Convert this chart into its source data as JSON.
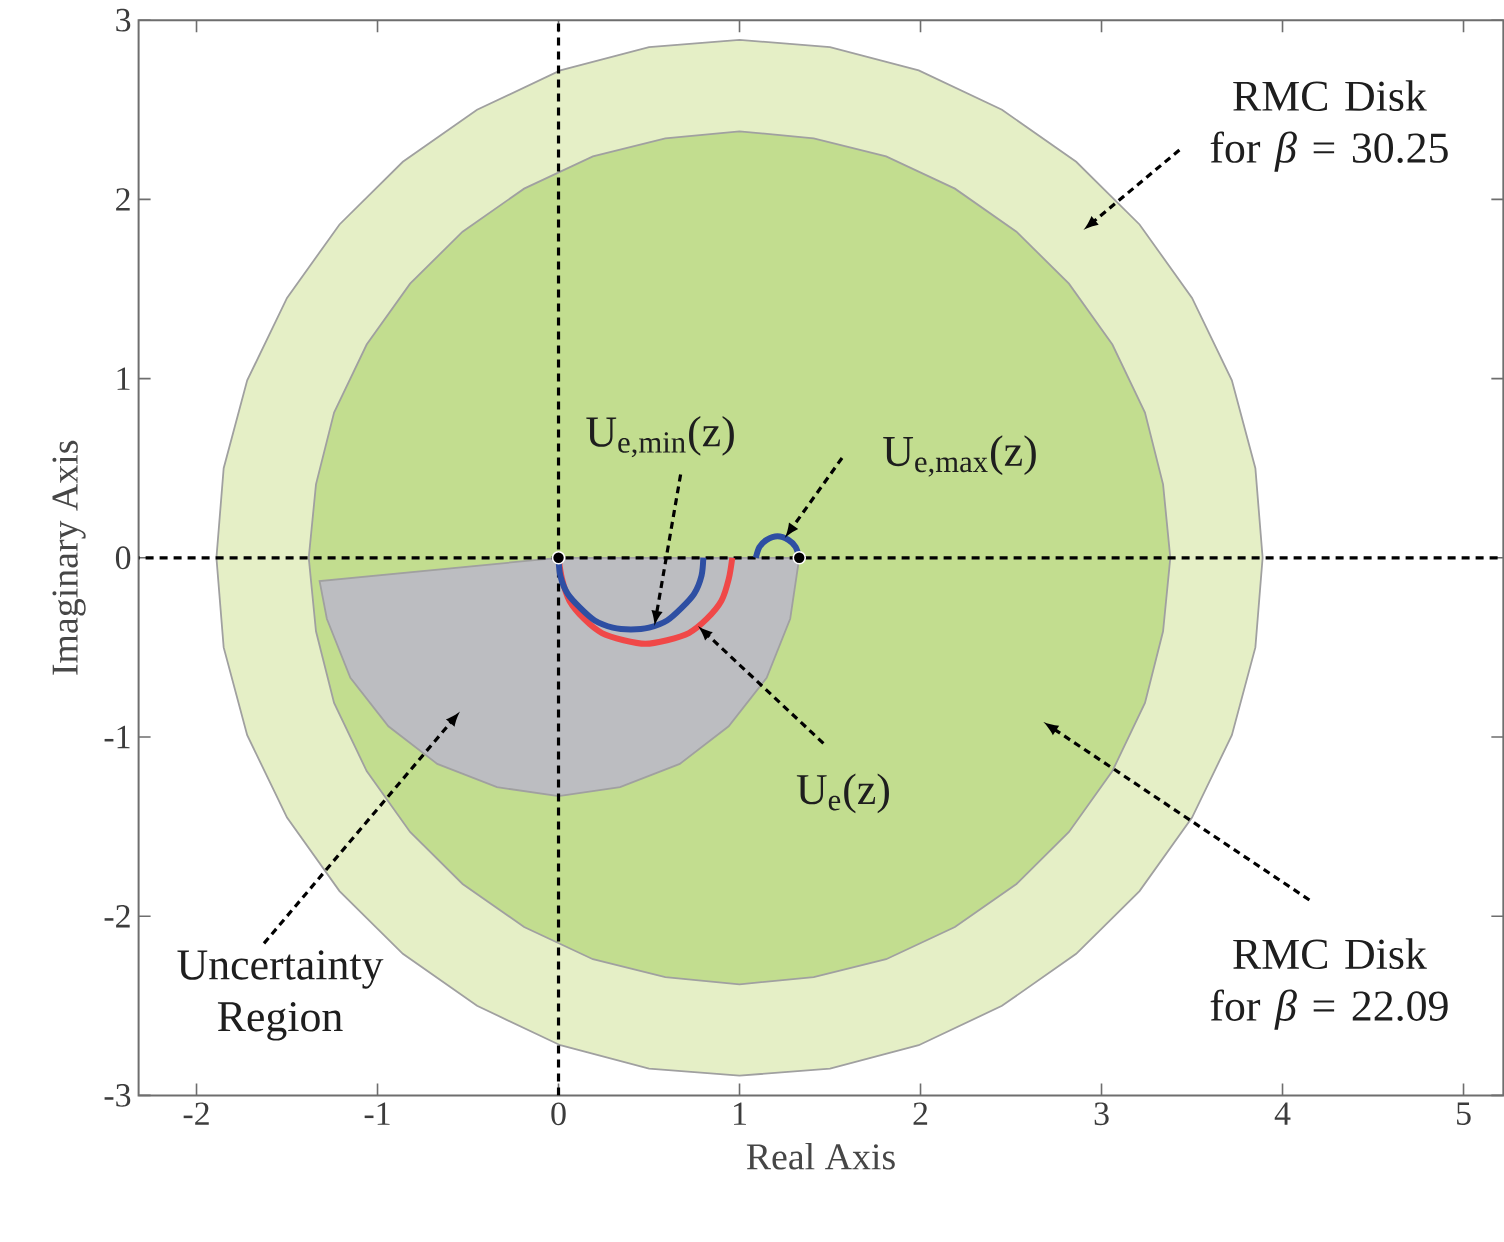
{
  "chart_data": {
    "type": "area",
    "xlabel": "Real Axis",
    "ylabel": "Imaginary Axis",
    "xlim": [
      -2.32,
      5.22
    ],
    "ylim": [
      -3,
      3
    ],
    "xticks": [
      -2,
      -1,
      0,
      1,
      2,
      3,
      4,
      5
    ],
    "yticks": [
      -3,
      -2,
      -1,
      0,
      1,
      2,
      3
    ],
    "series": [
      {
        "color": "#e5efc6",
        "x": [
          3.89,
          3.85,
          3.72,
          3.5,
          3.21,
          2.86,
          2.45,
          1.99,
          1.5,
          1.0,
          0.5,
          0.01,
          -0.45,
          -0.86,
          -1.21,
          -1.5,
          -1.72,
          -1.85,
          -1.89,
          -1.85,
          -1.72,
          -1.5,
          -1.21,
          -0.86,
          -0.45,
          0.01,
          0.5,
          1.0,
          1.5,
          1.99,
          2.45,
          2.86,
          3.21,
          3.5,
          3.72,
          3.85,
          3.89
        ],
        "values": [
          0,
          0.5,
          0.99,
          1.45,
          1.86,
          2.21,
          2.5,
          2.72,
          2.85,
          2.89,
          2.85,
          2.72,
          2.5,
          2.21,
          1.86,
          1.45,
          0.99,
          0.5,
          0,
          -0.5,
          -0.99,
          -1.45,
          -1.86,
          -2.21,
          -2.5,
          -2.72,
          -2.85,
          -2.89,
          -2.85,
          -2.72,
          -2.5,
          -2.21,
          -1.86,
          -1.45,
          -0.99,
          -0.5,
          0
        ]
      },
      {
        "color": "#c2dd8f",
        "x": [
          3.38,
          3.34,
          3.24,
          3.06,
          2.82,
          2.53,
          2.19,
          1.81,
          1.41,
          1.0,
          0.59,
          0.19,
          -0.19,
          -0.53,
          -0.82,
          -1.06,
          -1.24,
          -1.34,
          -1.38,
          -1.34,
          -1.24,
          -1.06,
          -0.82,
          -0.53,
          -0.19,
          0.19,
          0.59,
          1.0,
          1.41,
          1.81,
          2.19,
          2.53,
          2.82,
          3.06,
          3.24,
          3.34,
          3.38
        ],
        "values": [
          0,
          0.41,
          0.81,
          1.19,
          1.53,
          1.82,
          2.06,
          2.24,
          2.34,
          2.38,
          2.34,
          2.24,
          2.06,
          1.82,
          1.53,
          1.19,
          0.81,
          0.41,
          0,
          -0.41,
          -0.81,
          -1.19,
          -1.53,
          -1.82,
          -2.06,
          -2.24,
          -2.34,
          -2.38,
          -2.34,
          -2.24,
          -2.06,
          -1.82,
          -1.53,
          -1.19,
          -0.81,
          -0.41,
          0
        ]
      },
      {
        "color": "#bcbdc1",
        "x": [
          0,
          -1.32,
          -1.28,
          -1.15,
          -0.94,
          -0.67,
          -0.34,
          0,
          0.34,
          0.67,
          0.94,
          1.15,
          1.28,
          1.33,
          0
        ],
        "values": [
          0,
          -0.13,
          -0.34,
          -0.67,
          -0.94,
          -1.15,
          -1.28,
          -1.33,
          -1.28,
          -1.15,
          -0.94,
          -0.67,
          -0.34,
          0,
          0
        ]
      },
      {
        "type": "line",
        "color": "#f04848",
        "x": [
          0,
          0.02,
          0.06,
          0.14,
          0.24,
          0.36,
          0.48,
          0.6,
          0.72,
          0.82,
          0.9,
          0.94,
          0.96
        ],
        "values": [
          0,
          -0.12,
          -0.24,
          -0.34,
          -0.42,
          -0.46,
          -0.48,
          -0.46,
          -0.42,
          -0.34,
          -0.24,
          -0.12,
          0
        ]
      },
      {
        "type": "line",
        "color": "#2e4fa3",
        "x": [
          0,
          0.01,
          0.05,
          0.12,
          0.2,
          0.3,
          0.4,
          0.5,
          0.6,
          0.68,
          0.75,
          0.79,
          0.8
        ],
        "values": [
          0,
          -0.1,
          -0.2,
          -0.28,
          -0.35,
          -0.39,
          -0.4,
          -0.39,
          -0.35,
          -0.28,
          -0.2,
          -0.1,
          0
        ]
      },
      {
        "type": "line",
        "color": "#2e4fa3",
        "x": [
          1.09,
          1.11,
          1.15,
          1.21,
          1.27,
          1.31,
          1.33
        ],
        "values": [
          0,
          0.06,
          0.1,
          0.12,
          0.1,
          0.06,
          0
        ]
      },
      {
        "type": "scatter",
        "color": "#000000",
        "marker": "circle",
        "x": [
          0,
          1.33
        ],
        "values": [
          0,
          0
        ]
      }
    ],
    "ref_lines": [
      {
        "axis": "x",
        "value": 0,
        "color": "#000000",
        "line_style": "dashed"
      },
      {
        "axis": "y",
        "value": 0,
        "color": "#000000",
        "line_style": "dashed"
      }
    ],
    "annotations": [
      "RMC Disk for *β* = 30.25",
      "RMC Disk for *β* = 22.09",
      "Uncertainty Region",
      {
        "text": "U$_{e}$(z)",
        "x": 0.77,
        "y": -0.38
      },
      {
        "text": "U$_{e,min}$(z)",
        "x": 0.53,
        "y": -0.38
      },
      {
        "text": "U$_{e,max}$(z)",
        "x": 1.25,
        "y": 0.11
      }
    ]
  }
}
